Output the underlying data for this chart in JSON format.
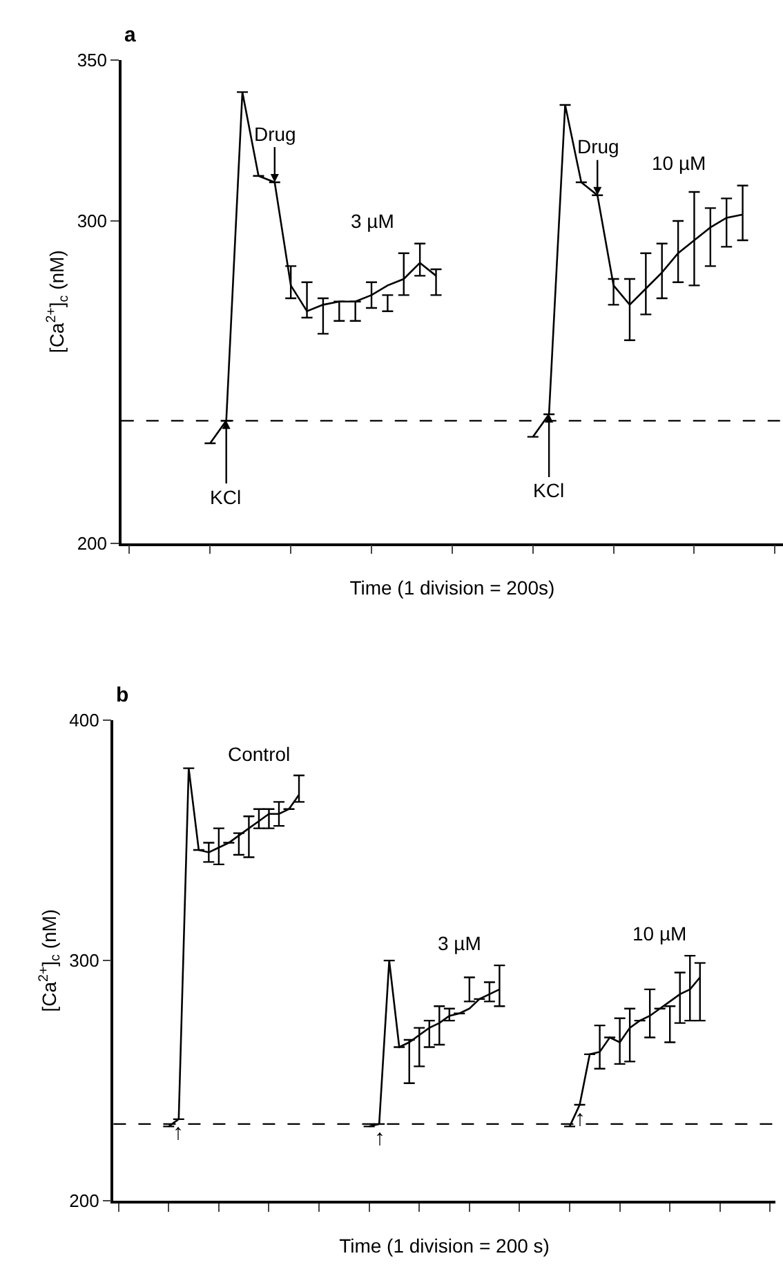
{
  "chart_data": [
    {
      "type": "line",
      "title": "a",
      "xlabel": "Time (1 division = 200s)",
      "ylabel": "[Ca$^{2+}$]$_{c}$ (nM)",
      "categories": [
        null,
        null,
        null,
        null,
        null,
        null,
        null,
        null,
        null,
        null,
        null,
        null,
        null,
        null,
        null,
        null,
        null,
        null,
        null,
        null,
        null,
        null,
        null,
        null,
        null,
        null,
        null,
        null,
        null,
        null,
        null,
        null,
        null,
        null,
        null,
        null,
        null,
        null,
        null,
        null,
        null
      ],
      "ylim": [
        200,
        350
      ],
      "yticks": [
        200,
        300,
        350
      ],
      "marker": "none",
      "line_style": "solid",
      "series": [
        {
          "name": "3 µM",
          "color": "#000000",
          "values": [
            null,
            null,
            null,
            null,
            null,
            231,
            238,
            340,
            314,
            312,
            280,
            272,
            274,
            275,
            275,
            277,
            280,
            282,
            287,
            283,
            null,
            null,
            null,
            null,
            null,
            null,
            null,
            null,
            null,
            null,
            null,
            null,
            null,
            null,
            null,
            null,
            null,
            null,
            null,
            null,
            null
          ],
          "errors": [
            null,
            null,
            null,
            null,
            null,
            null,
            null,
            null,
            null,
            null,
            [
              276,
              286
            ],
            [
              270,
              281
            ],
            [
              265,
              276
            ],
            [
              269,
              275
            ],
            [
              269,
              275
            ],
            [
              273,
              281
            ],
            [
              272,
              277
            ],
            [
              277,
              290
            ],
            [
              283,
              293
            ],
            [
              277,
              285
            ],
            null,
            null,
            null,
            null,
            null,
            null,
            null,
            null,
            null,
            null,
            null,
            null,
            null,
            null,
            null,
            null,
            null,
            null,
            null,
            null,
            null
          ]
        },
        {
          "name": "10 µM",
          "color": "#000000",
          "values": [
            null,
            null,
            null,
            null,
            null,
            null,
            null,
            null,
            null,
            null,
            null,
            null,
            null,
            null,
            null,
            null,
            null,
            null,
            null,
            null,
            null,
            null,
            null,
            null,
            null,
            233,
            240,
            336,
            312,
            308,
            280,
            274,
            279,
            284,
            290,
            294,
            298,
            301,
            302,
            null,
            null
          ],
          "errors": [
            null,
            null,
            null,
            null,
            null,
            null,
            null,
            null,
            null,
            null,
            null,
            null,
            null,
            null,
            null,
            null,
            null,
            null,
            null,
            null,
            null,
            null,
            null,
            null,
            null,
            null,
            null,
            null,
            null,
            null,
            [
              274,
              282
            ],
            [
              263,
              282
            ],
            [
              271,
              290
            ],
            [
              276,
              293
            ],
            [
              281,
              300
            ],
            [
              280,
              309
            ],
            [
              286,
              304
            ],
            [
              292,
              307
            ],
            [
              294,
              311
            ],
            null,
            null
          ]
        }
      ],
      "ref_lines": [
        {
          "axis": "y",
          "value": 238,
          "color": "#000000",
          "line_style": "dashed"
        }
      ],
      "annotations": [
        {
          "text": "KCl",
          "y": 238
        },
        {
          "text": "Drug",
          "y": 312
        },
        {
          "text": "KCl",
          "y": 240
        },
        {
          "text": "Drug",
          "y": 308
        }
      ]
    },
    {
      "type": "line",
      "title": "b",
      "xlabel": "Time (1 division = 200 s)",
      "ylabel": "[Ca$^{2+}$]$_{c}$ (nM)",
      "categories": [
        null,
        null,
        null,
        null,
        null,
        null,
        null,
        null,
        null,
        null,
        null,
        null,
        null,
        null,
        null,
        null,
        null,
        null,
        null,
        null,
        null,
        null,
        null,
        null,
        null,
        null,
        null,
        null,
        null,
        null,
        null,
        null,
        null,
        null,
        null,
        null,
        null,
        null,
        null,
        null,
        null,
        null,
        null,
        null,
        null,
        null,
        null,
        null,
        null,
        null,
        null,
        null,
        null,
        null,
        null,
        null,
        null,
        null,
        null,
        null,
        null,
        null,
        null,
        null,
        null,
        null
      ],
      "ylim": [
        200,
        400
      ],
      "yticks": [
        200,
        300,
        400
      ],
      "marker": "none",
      "line_style": "solid",
      "series": [
        {
          "name": "Control",
          "color": "#000000",
          "values": [
            null,
            null,
            null,
            null,
            null,
            231,
            234,
            380,
            346,
            345,
            347,
            349,
            352,
            355,
            358,
            361,
            361,
            363,
            369,
            null,
            null,
            null,
            null,
            null,
            null,
            null,
            null,
            null,
            null,
            null,
            null,
            null,
            null,
            null,
            null,
            null,
            null,
            null,
            null,
            null,
            null,
            null,
            null,
            null,
            null,
            null,
            null,
            null,
            null,
            null,
            null,
            null,
            null,
            null,
            null,
            null,
            null,
            null,
            null,
            null,
            null,
            null,
            null,
            null,
            null,
            null
          ],
          "errors": [
            null,
            null,
            null,
            null,
            null,
            null,
            null,
            null,
            null,
            [
              341,
              349
            ],
            [
              340,
              355
            ],
            null,
            [
              344,
              353
            ],
            [
              343,
              360
            ],
            [
              355,
              363
            ],
            [
              355,
              363
            ],
            [
              356,
              366
            ],
            null,
            [
              366,
              377
            ],
            null,
            null,
            null,
            null,
            null,
            null,
            null,
            null,
            null,
            null,
            null,
            null,
            null,
            null,
            null,
            null,
            null,
            null,
            null,
            null,
            null,
            null,
            null,
            null,
            null,
            null,
            null,
            null,
            null,
            null,
            null,
            null,
            null,
            null,
            null,
            null,
            null,
            null,
            null,
            null,
            null,
            null,
            null,
            null,
            null,
            null,
            null
          ]
        },
        {
          "name": "3 µM",
          "color": "#000000",
          "values": [
            null,
            null,
            null,
            null,
            null,
            null,
            null,
            null,
            null,
            null,
            null,
            null,
            null,
            null,
            null,
            null,
            null,
            null,
            null,
            null,
            null,
            null,
            null,
            null,
            null,
            231,
            232,
            300,
            264,
            266,
            269,
            272,
            274,
            277,
            278,
            280,
            284,
            286,
            288,
            null,
            null,
            null,
            null,
            null,
            null,
            null,
            null,
            null,
            null,
            null,
            null,
            null,
            null,
            null,
            null,
            null,
            null,
            null,
            null,
            null,
            null,
            null,
            null,
            null,
            null,
            null
          ],
          "errors": [
            null,
            null,
            null,
            null,
            null,
            null,
            null,
            null,
            null,
            null,
            null,
            null,
            null,
            null,
            null,
            null,
            null,
            null,
            null,
            null,
            null,
            null,
            null,
            null,
            null,
            null,
            null,
            null,
            null,
            [
              249,
              267
            ],
            [
              256,
              272
            ],
            [
              264,
              275
            ],
            [
              265,
              281
            ],
            [
              275,
              280
            ],
            null,
            [
              283,
              293
            ],
            null,
            [
              283,
              291
            ],
            [
              281,
              298
            ],
            null,
            null,
            null,
            null,
            null,
            null,
            null,
            null,
            null,
            null,
            null,
            null,
            null,
            null,
            null,
            null,
            null,
            null,
            null,
            null,
            null,
            null,
            null,
            null,
            null,
            null,
            null
          ]
        },
        {
          "name": "10 µM",
          "color": "#000000",
          "values": [
            null,
            null,
            null,
            null,
            null,
            null,
            null,
            null,
            null,
            null,
            null,
            null,
            null,
            null,
            null,
            null,
            null,
            null,
            null,
            null,
            null,
            null,
            null,
            null,
            null,
            null,
            null,
            null,
            null,
            null,
            null,
            null,
            null,
            null,
            null,
            null,
            null,
            null,
            null,
            null,
            null,
            null,
            null,
            null,
            null,
            231,
            240,
            261,
            262,
            268,
            266,
            272,
            275,
            277,
            280,
            283,
            286,
            288,
            293,
            null,
            null,
            null,
            null,
            null,
            null,
            null
          ],
          "errors": [
            null,
            null,
            null,
            null,
            null,
            null,
            null,
            null,
            null,
            null,
            null,
            null,
            null,
            null,
            null,
            null,
            null,
            null,
            null,
            null,
            null,
            null,
            null,
            null,
            null,
            null,
            null,
            null,
            null,
            null,
            null,
            null,
            null,
            null,
            null,
            null,
            null,
            null,
            null,
            null,
            null,
            null,
            null,
            null,
            null,
            null,
            null,
            null,
            [
              255,
              273
            ],
            null,
            [
              257,
              276
            ],
            [
              258,
              280
            ],
            null,
            [
              268,
              288
            ],
            null,
            [
              266,
              281
            ],
            [
              274,
              295
            ],
            [
              275,
              302
            ],
            [
              275,
              299
            ],
            null,
            null,
            null,
            null,
            null,
            null,
            null
          ]
        }
      ],
      "ref_lines": [
        {
          "axis": "y",
          "value": 232,
          "color": "#000000",
          "line_style": "dashed"
        }
      ],
      "annotations": [
        {
          "text": "↑",
          "y": 234
        },
        {
          "text": "↑",
          "y": 232
        },
        {
          "text": "↑",
          "y": 240
        }
      ]
    }
  ]
}
